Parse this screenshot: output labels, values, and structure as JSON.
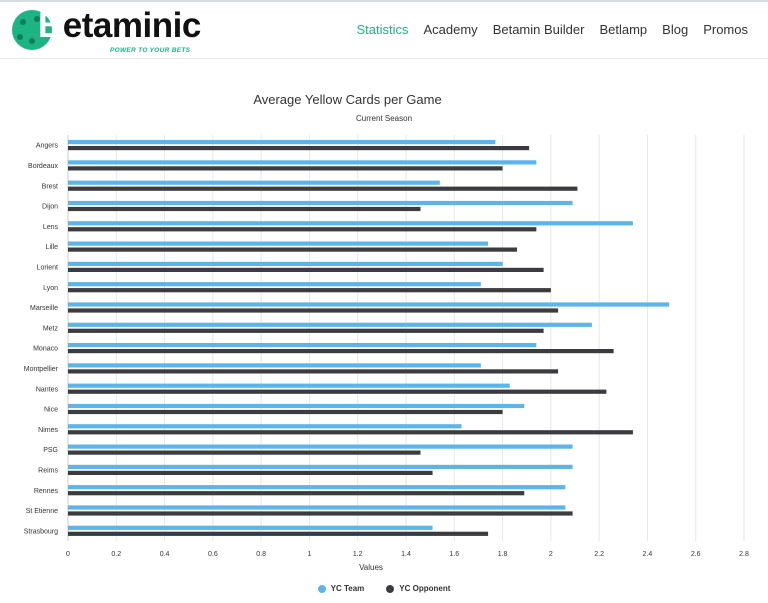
{
  "brand": {
    "name_b": "B",
    "name_rest": "etaminic",
    "tagline": "POWER TO YOUR BETS",
    "accent_color": "#1bb482"
  },
  "nav": {
    "items": [
      {
        "label": "Statistics",
        "active": true
      },
      {
        "label": "Academy",
        "active": false
      },
      {
        "label": "Betamin Builder",
        "active": false
      },
      {
        "label": "Betlamp",
        "active": false
      },
      {
        "label": "Blog",
        "active": false
      },
      {
        "label": "Promos",
        "active": false
      }
    ]
  },
  "chart_data": {
    "type": "bar",
    "orientation": "horizontal",
    "title": "Average Yellow Cards per Game",
    "subtitle": "Current Season",
    "xlabel": "Values",
    "ylabel": "",
    "xlim": [
      0,
      2.8
    ],
    "xticks": [
      "0",
      "0.2",
      "0.4",
      "0.6",
      "0.8",
      "1",
      "1.2",
      "1.4",
      "1.6",
      "1.8",
      "2",
      "2.2",
      "2.4",
      "2.6",
      "2.8"
    ],
    "grid": true,
    "legend_position": "bottom-center",
    "categories": [
      "Angers",
      "Bordeaux",
      "Brest",
      "Dijon",
      "Lens",
      "Lille",
      "Lorient",
      "Lyon",
      "Marseille",
      "Metz",
      "Monaco",
      "Montpellier",
      "Nantes",
      "Nice",
      "Nimes",
      "PSG",
      "Reims",
      "Rennes",
      "St Etienne",
      "Strasbourg"
    ],
    "series": [
      {
        "name": "YC Team",
        "color": "#5db4e8",
        "values": [
          1.77,
          1.94,
          1.54,
          2.09,
          2.34,
          1.74,
          1.8,
          1.71,
          2.49,
          2.17,
          1.94,
          1.71,
          1.83,
          1.89,
          1.63,
          2.09,
          2.09,
          2.06,
          2.06,
          1.51
        ]
      },
      {
        "name": "YC Opponent",
        "color": "#3b3b40",
        "values": [
          1.91,
          1.8,
          2.11,
          1.46,
          1.94,
          1.86,
          1.97,
          2.0,
          2.03,
          1.97,
          2.26,
          2.03,
          2.23,
          1.8,
          2.34,
          1.46,
          1.51,
          1.89,
          2.09,
          1.74
        ]
      }
    ]
  }
}
